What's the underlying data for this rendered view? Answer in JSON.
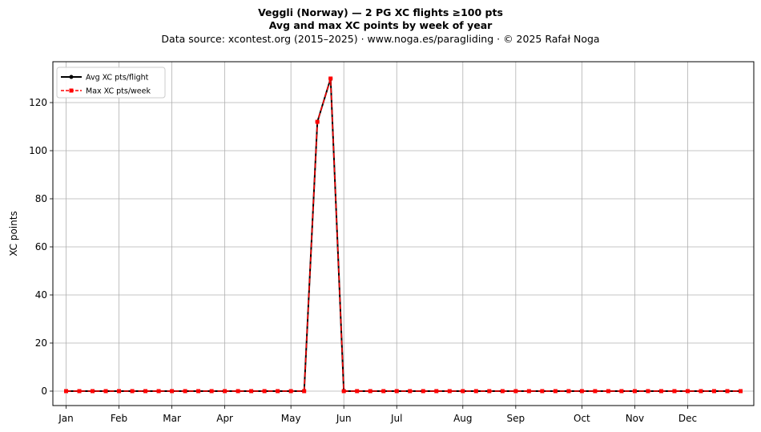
{
  "header": {
    "title_line1": "Veggli (Norway)  —  2 PG XC flights ≥100 pts",
    "title_line2": "Avg and max XC points by week of year",
    "subtitle": "Data source: xcontest.org (2015–2025)  ·  www.noga.es/paragliding  ·  © 2025 Rafał Noga"
  },
  "chart_data": {
    "type": "line",
    "ylabel": "XC points",
    "xlabel": "",
    "xlim": [
      0,
      53
    ],
    "ylim": [
      -6,
      137
    ],
    "yticks": [
      0,
      20,
      40,
      60,
      80,
      100,
      120
    ],
    "month_ticks": [
      {
        "label": "Jan",
        "week": 1
      },
      {
        "label": "Feb",
        "week": 5
      },
      {
        "label": "Mar",
        "week": 9
      },
      {
        "label": "Apr",
        "week": 13
      },
      {
        "label": "May",
        "week": 18
      },
      {
        "label": "Jun",
        "week": 22
      },
      {
        "label": "Jul",
        "week": 26
      },
      {
        "label": "Aug",
        "week": 31
      },
      {
        "label": "Sep",
        "week": 35
      },
      {
        "label": "Oct",
        "week": 40
      },
      {
        "label": "Nov",
        "week": 44
      },
      {
        "label": "Dec",
        "week": 48
      }
    ],
    "grid": true,
    "legend_position": "top-left",
    "x": [
      1,
      2,
      3,
      4,
      5,
      6,
      7,
      8,
      9,
      10,
      11,
      12,
      13,
      14,
      15,
      16,
      17,
      18,
      19,
      20,
      21,
      22,
      23,
      24,
      25,
      26,
      27,
      28,
      29,
      30,
      31,
      32,
      33,
      34,
      35,
      36,
      37,
      38,
      39,
      40,
      41,
      42,
      43,
      44,
      45,
      46,
      47,
      48,
      49,
      50,
      51,
      52
    ],
    "series": [
      {
        "name": "Avg XC pts/flight",
        "color": "#000000",
        "style": "solid",
        "marker": "circle",
        "values": [
          0,
          0,
          0,
          0,
          0,
          0,
          0,
          0,
          0,
          0,
          0,
          0,
          0,
          0,
          0,
          0,
          0,
          0,
          0,
          112,
          130,
          0,
          0,
          0,
          0,
          0,
          0,
          0,
          0,
          0,
          0,
          0,
          0,
          0,
          0,
          0,
          0,
          0,
          0,
          0,
          0,
          0,
          0,
          0,
          0,
          0,
          0,
          0,
          0,
          0,
          0,
          0
        ]
      },
      {
        "name": "Max XC pts/week",
        "color": "#ff0000",
        "style": "dashed",
        "marker": "square",
        "values": [
          0,
          0,
          0,
          0,
          0,
          0,
          0,
          0,
          0,
          0,
          0,
          0,
          0,
          0,
          0,
          0,
          0,
          0,
          0,
          112,
          130,
          0,
          0,
          0,
          0,
          0,
          0,
          0,
          0,
          0,
          0,
          0,
          0,
          0,
          0,
          0,
          0,
          0,
          0,
          0,
          0,
          0,
          0,
          0,
          0,
          0,
          0,
          0,
          0,
          0,
          0,
          0
        ]
      }
    ]
  }
}
